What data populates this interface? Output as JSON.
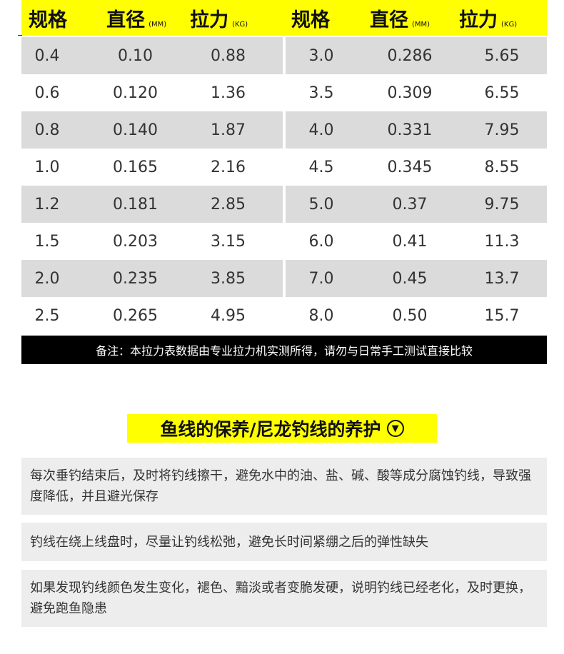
{
  "header": {
    "columns": [
      {
        "label": "规格",
        "unit": ""
      },
      {
        "label": "直径",
        "unit": "(MM)"
      },
      {
        "label": "拉力",
        "unit": "(KG)"
      }
    ]
  },
  "rows": [
    [
      "0.4",
      "0.10",
      "0.88",
      "3.0",
      "0.286",
      "5.65"
    ],
    [
      "0.6",
      "0.120",
      "1.36",
      "3.5",
      "0.309",
      "6.55"
    ],
    [
      "0.8",
      "0.140",
      "1.87",
      "4.0",
      "0.331",
      "7.95"
    ],
    [
      "1.0",
      "0.165",
      "2.16",
      "4.5",
      "0.345",
      "8.55"
    ],
    [
      "1.2",
      "0.181",
      "2.85",
      "5.0",
      "0.37",
      "9.75"
    ],
    [
      "1.5",
      "0.203",
      "3.15",
      "6.0",
      "0.41",
      "11.3"
    ],
    [
      "2.0",
      "0.235",
      "3.85",
      "7.0",
      "0.45",
      "13.7"
    ],
    [
      "2.5",
      "0.265",
      "4.95",
      "8.0",
      "0.50",
      "15.7"
    ]
  ],
  "note": "备注：本拉力表数据由专业拉力机实测所得，请勿与日常手工测试直接比较",
  "care": {
    "title": "鱼线的保养/尼龙钓线的养护",
    "icon": "circle-chevron-down-icon",
    "tips": [
      "每次垂钓结束后，及时将钓线擦干，避免水中的油、盐、碱、酸等成分腐蚀钓线，导致强度降低，并且避光保存",
      "钓线在绕上线盘时，尽量让钓线松弛，避免长时间紧绷之后的弹性缺失",
      "如果发现钓线颜色发生变化，褪色、黯淡或者变脆发硬，说明钓线已经老化，及时更换，避免跑鱼隐患"
    ]
  },
  "colors": {
    "accent": "#ffff00",
    "row_alt": "#dcdbdb",
    "card": "#eeeded"
  }
}
